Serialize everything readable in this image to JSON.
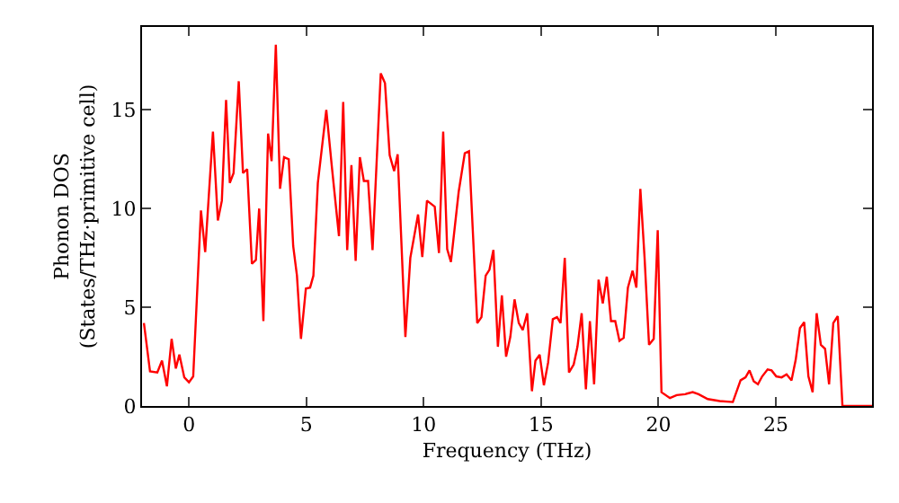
{
  "chart_data": {
    "type": "line",
    "xlabel": "Frequency (THz)",
    "ylabel": "Phonon DOS\n(States/THz·primitive cell)",
    "xlim": [
      -2,
      29.1
    ],
    "ylim": [
      0,
      19.2
    ],
    "xticks": [
      0,
      5,
      10,
      15,
      20,
      25
    ],
    "yticks": [
      0,
      5,
      10,
      15
    ],
    "marker": "none",
    "line_style": "solid",
    "series": [
      {
        "color": "#ff0000",
        "x": [
          -1.92,
          -1.66,
          -1.35,
          -1.15,
          -0.94,
          -0.74,
          -0.56,
          -0.41,
          -0.2,
          0,
          0.18,
          0.51,
          0.69,
          1.02,
          1.23,
          1.4,
          1.58,
          1.74,
          1.9,
          2.12,
          2.3,
          2.48,
          2.68,
          2.85,
          2.99,
          3.17,
          3.37,
          3.52,
          3.7,
          3.88,
          4.05,
          4.25,
          4.44,
          4.6,
          4.77,
          4.98,
          5.16,
          5.3,
          5.49,
          5.85,
          6.08,
          6.39,
          6.57,
          6.74,
          6.92,
          7.1,
          7.28,
          7.45,
          7.63,
          7.82,
          8.17,
          8.35,
          8.55,
          8.74,
          8.89,
          9.22,
          9.43,
          9.76,
          9.94,
          10.14,
          10.47,
          10.65,
          10.83,
          11.0,
          11.16,
          11.49,
          11.75,
          11.93,
          12.28,
          12.46,
          12.64,
          12.8,
          12.97,
          13.16,
          13.33,
          13.51,
          13.69,
          13.87,
          14.05,
          14.22,
          14.41,
          14.61,
          14.76,
          14.94,
          15.12,
          15.3,
          15.5,
          15.68,
          15.83,
          16.01,
          16.19,
          16.39,
          16.55,
          16.73,
          16.91,
          17.08,
          17.26,
          17.45,
          17.63,
          17.8,
          17.98,
          18.16,
          18.34,
          18.52,
          18.7,
          18.9,
          19.06,
          19.23,
          19.41,
          19.6,
          19.8,
          19.97,
          20.13,
          20.49,
          20.78,
          21.14,
          21.46,
          21.71,
          22.1,
          22.61,
          23.17,
          23.5,
          23.71,
          23.88,
          24.06,
          24.24,
          24.42,
          24.65,
          24.82,
          25.02,
          25.25,
          25.46,
          25.67,
          25.85,
          26.03,
          26.21,
          26.39,
          26.57,
          26.74,
          26.92,
          27.1,
          27.27,
          27.45,
          27.64,
          27.84,
          29.1
        ],
        "values": [
          4.2,
          1.75,
          1.7,
          2.3,
          1.0,
          3.4,
          1.9,
          2.6,
          1.45,
          1.2,
          1.5,
          9.9,
          7.8,
          13.9,
          9.4,
          10.4,
          15.5,
          11.3,
          11.8,
          16.45,
          11.8,
          12.0,
          7.2,
          7.4,
          10.0,
          4.3,
          13.8,
          12.4,
          18.3,
          11.0,
          12.6,
          12.5,
          8.1,
          6.6,
          3.4,
          5.95,
          6.0,
          6.6,
          11.3,
          15.0,
          12.2,
          8.6,
          15.4,
          7.9,
          12.2,
          7.35,
          12.6,
          11.4,
          11.4,
          7.9,
          16.85,
          16.35,
          12.7,
          11.9,
          12.75,
          3.5,
          7.5,
          9.7,
          7.55,
          10.4,
          10.1,
          7.75,
          13.9,
          7.95,
          7.3,
          10.85,
          12.8,
          12.9,
          4.2,
          4.5,
          6.6,
          6.9,
          7.9,
          3.0,
          5.6,
          2.5,
          3.5,
          5.4,
          4.2,
          3.85,
          4.7,
          0.75,
          2.3,
          2.6,
          1.05,
          2.2,
          4.4,
          4.5,
          4.2,
          7.5,
          1.7,
          2.1,
          3.0,
          4.7,
          0.85,
          4.3,
          1.1,
          6.4,
          5.2,
          6.55,
          4.3,
          4.3,
          3.3,
          3.45,
          6.0,
          6.85,
          6.0,
          11.0,
          7.5,
          3.1,
          3.4,
          8.9,
          0.7,
          0.4,
          0.55,
          0.6,
          0.7,
          0.6,
          0.35,
          0.25,
          0.2,
          1.3,
          1.45,
          1.8,
          1.25,
          1.1,
          1.5,
          1.85,
          1.8,
          1.5,
          1.45,
          1.6,
          1.3,
          2.35,
          3.95,
          4.25,
          1.5,
          0.7,
          4.7,
          3.1,
          2.9,
          1.1,
          4.2,
          4.55,
          0,
          0
        ]
      }
    ]
  }
}
